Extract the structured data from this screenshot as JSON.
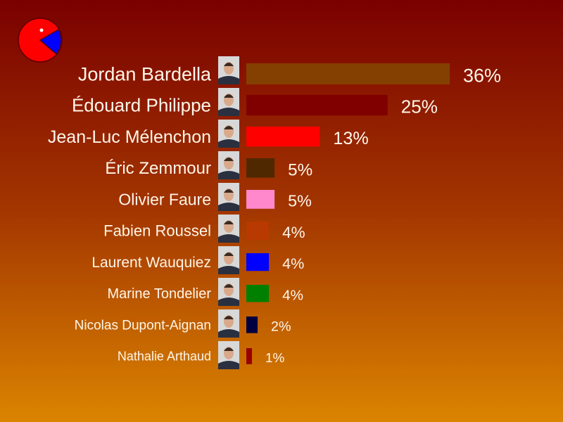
{
  "logo": {
    "icon": "pacman-pie-logo-icon",
    "colors": {
      "body": "#ff0000",
      "slice": "#0000ff"
    }
  },
  "chart_data": {
    "type": "bar",
    "orientation": "horizontal",
    "unit": "%",
    "categories": [
      "Jordan Bardella",
      "Édouard Philippe",
      "Jean-Luc Mélenchon",
      "Éric Zemmour",
      "Olivier Faure",
      "Fabien Roussel",
      "Laurent Wauquiez",
      "Marine Tondelier",
      "Nicolas Dupont-Aignan",
      "Nathalie Arthaud"
    ],
    "values": [
      36,
      25,
      13,
      5,
      5,
      4,
      4,
      4,
      2,
      1
    ],
    "value_labels": [
      "36%",
      "25%",
      "13%",
      "5%",
      "5%",
      "4%",
      "4%",
      "4%",
      "2%",
      "1%"
    ],
    "colors": [
      "#844000",
      "#800000",
      "#ff0000",
      "#502800",
      "#ff88cc",
      "#b83a00",
      "#0000ff",
      "#008000",
      "#000040",
      "#990000"
    ],
    "photos": [
      "candidate-photo",
      "candidate-photo",
      "candidate-photo",
      "candidate-photo",
      "candidate-photo",
      "candidate-photo",
      "candidate-photo",
      "candidate-photo",
      "candidate-photo",
      "candidate-photo"
    ],
    "xlim": [
      0,
      40
    ],
    "grid": false,
    "legend": "none"
  }
}
